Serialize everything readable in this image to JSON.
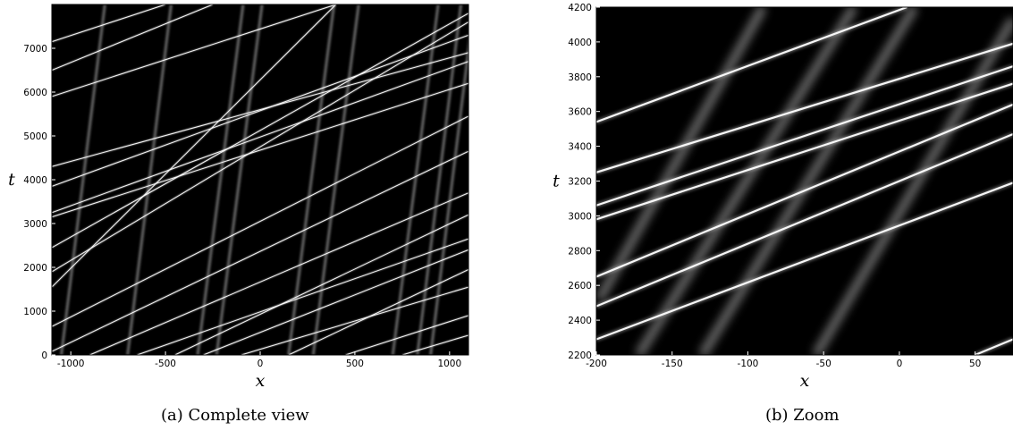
{
  "chart_data": [
    {
      "type": "heatmap",
      "caption": "(a) Complete view",
      "xlabel": "x",
      "ylabel": "t",
      "xlim": [
        -1100,
        1100
      ],
      "ylim": [
        0,
        8000
      ],
      "xticks": [
        -1000,
        -500,
        0,
        500,
        1000
      ],
      "yticks": [
        0,
        1000,
        2000,
        3000,
        4000,
        5000,
        6000,
        7000
      ],
      "background": "#000000",
      "line_color": "#ffffff",
      "fast_tracks": [
        {
          "x0": -1100,
          "t0": 7150,
          "x1": -500,
          "t1": 8000
        },
        {
          "x0": -1100,
          "t0": 6500,
          "x1": -250,
          "t1": 8000
        },
        {
          "x0": -1100,
          "t0": 3850,
          "x1": 1100,
          "t1": 7300
        },
        {
          "x0": -1100,
          "t0": 3250,
          "x1": 1100,
          "t1": 6700
        },
        {
          "x0": -1100,
          "t0": 3150,
          "x1": 1100,
          "t1": 6200
        },
        {
          "x0": -1100,
          "t0": 2450,
          "x1": 1100,
          "t1": 7800
        },
        {
          "x0": -1100,
          "t0": 1550,
          "x1": 400,
          "t1": 8000
        },
        {
          "x0": -1100,
          "t0": 650,
          "x1": 1100,
          "t1": 5450
        },
        {
          "x0": -1100,
          "t0": 80,
          "x1": 1100,
          "t1": 4650
        },
        {
          "x0": -650,
          "t0": 0,
          "x1": 1100,
          "t1": 2650
        },
        {
          "x0": -450,
          "t0": 0,
          "x1": 1100,
          "t1": 3200
        },
        {
          "x0": -300,
          "t0": 0,
          "x1": 1100,
          "t1": 2400
        },
        {
          "x0": -100,
          "t0": 0,
          "x1": 1100,
          "t1": 1550
        },
        {
          "x0": 150,
          "t0": 0,
          "x1": 1100,
          "t1": 1950
        },
        {
          "x0": 450,
          "t0": 0,
          "x1": 1100,
          "t1": 900
        },
        {
          "x0": 750,
          "t0": 0,
          "x1": 1100,
          "t1": 450
        },
        {
          "x0": -1100,
          "t0": 5900,
          "x1": 400,
          "t1": 8000
        },
        {
          "x0": -1100,
          "t0": 4300,
          "x1": 1100,
          "t1": 6900
        },
        {
          "x0": -900,
          "t0": 0,
          "x1": 1100,
          "t1": 3700
        },
        {
          "x0": -1100,
          "t0": 1900,
          "x1": 1100,
          "t1": 7600
        }
      ],
      "slow_tracks": [
        {
          "x0": -1050,
          "t0": 0,
          "x1": -820,
          "t1": 8000
        },
        {
          "x0": -700,
          "t0": 0,
          "x1": -470,
          "t1": 8000
        },
        {
          "x0": -330,
          "t0": 0,
          "x1": -90,
          "t1": 8000
        },
        {
          "x0": -230,
          "t0": 0,
          "x1": 10,
          "t1": 8000
        },
        {
          "x0": 150,
          "t0": 0,
          "x1": 390,
          "t1": 8000
        },
        {
          "x0": 280,
          "t0": 0,
          "x1": 520,
          "t1": 8000
        },
        {
          "x0": 700,
          "t0": 0,
          "x1": 940,
          "t1": 8000
        },
        {
          "x0": 830,
          "t0": 0,
          "x1": 1060,
          "t1": 8000
        },
        {
          "x0": 900,
          "t0": 0,
          "x1": 1130,
          "t1": 8000
        }
      ]
    },
    {
      "type": "heatmap",
      "caption": "(b) Zoom",
      "xlabel": "x",
      "ylabel": "t",
      "xlim": [
        -200,
        75
      ],
      "ylim": [
        2200,
        4200
      ],
      "xticks": [
        -200,
        -150,
        -100,
        -50,
        0,
        50
      ],
      "yticks": [
        2200,
        2400,
        2600,
        2800,
        3000,
        3200,
        3400,
        3600,
        3800,
        4000,
        4200
      ],
      "background": "#000000",
      "line_color": "#ffffff",
      "fast_tracks": [
        {
          "x0": -200,
          "t0": 3540,
          "x1": 5,
          "t1": 4200
        },
        {
          "x0": -200,
          "t0": 3250,
          "x1": 75,
          "t1": 3990
        },
        {
          "x0": -200,
          "t0": 3060,
          "x1": 75,
          "t1": 3860
        },
        {
          "x0": -200,
          "t0": 2980,
          "x1": 75,
          "t1": 3760
        },
        {
          "x0": -200,
          "t0": 2650,
          "x1": 75,
          "t1": 3640
        },
        {
          "x0": -200,
          "t0": 2480,
          "x1": 75,
          "t1": 3470
        },
        {
          "x0": -200,
          "t0": 2290,
          "x1": 75,
          "t1": 3190
        },
        {
          "x0": 50,
          "t0": 2200,
          "x1": 75,
          "t1": 2290
        }
      ],
      "slow_tracks": [
        {
          "x0": -198,
          "t0": 2520,
          "x1": -90,
          "t1": 4200
        },
        {
          "x0": -172,
          "t0": 2200,
          "x1": -30,
          "t1": 4200
        },
        {
          "x0": -130,
          "t0": 2200,
          "x1": 10,
          "t1": 4200
        },
        {
          "x0": -55,
          "t0": 2200,
          "x1": 75,
          "t1": 4130
        }
      ]
    }
  ]
}
